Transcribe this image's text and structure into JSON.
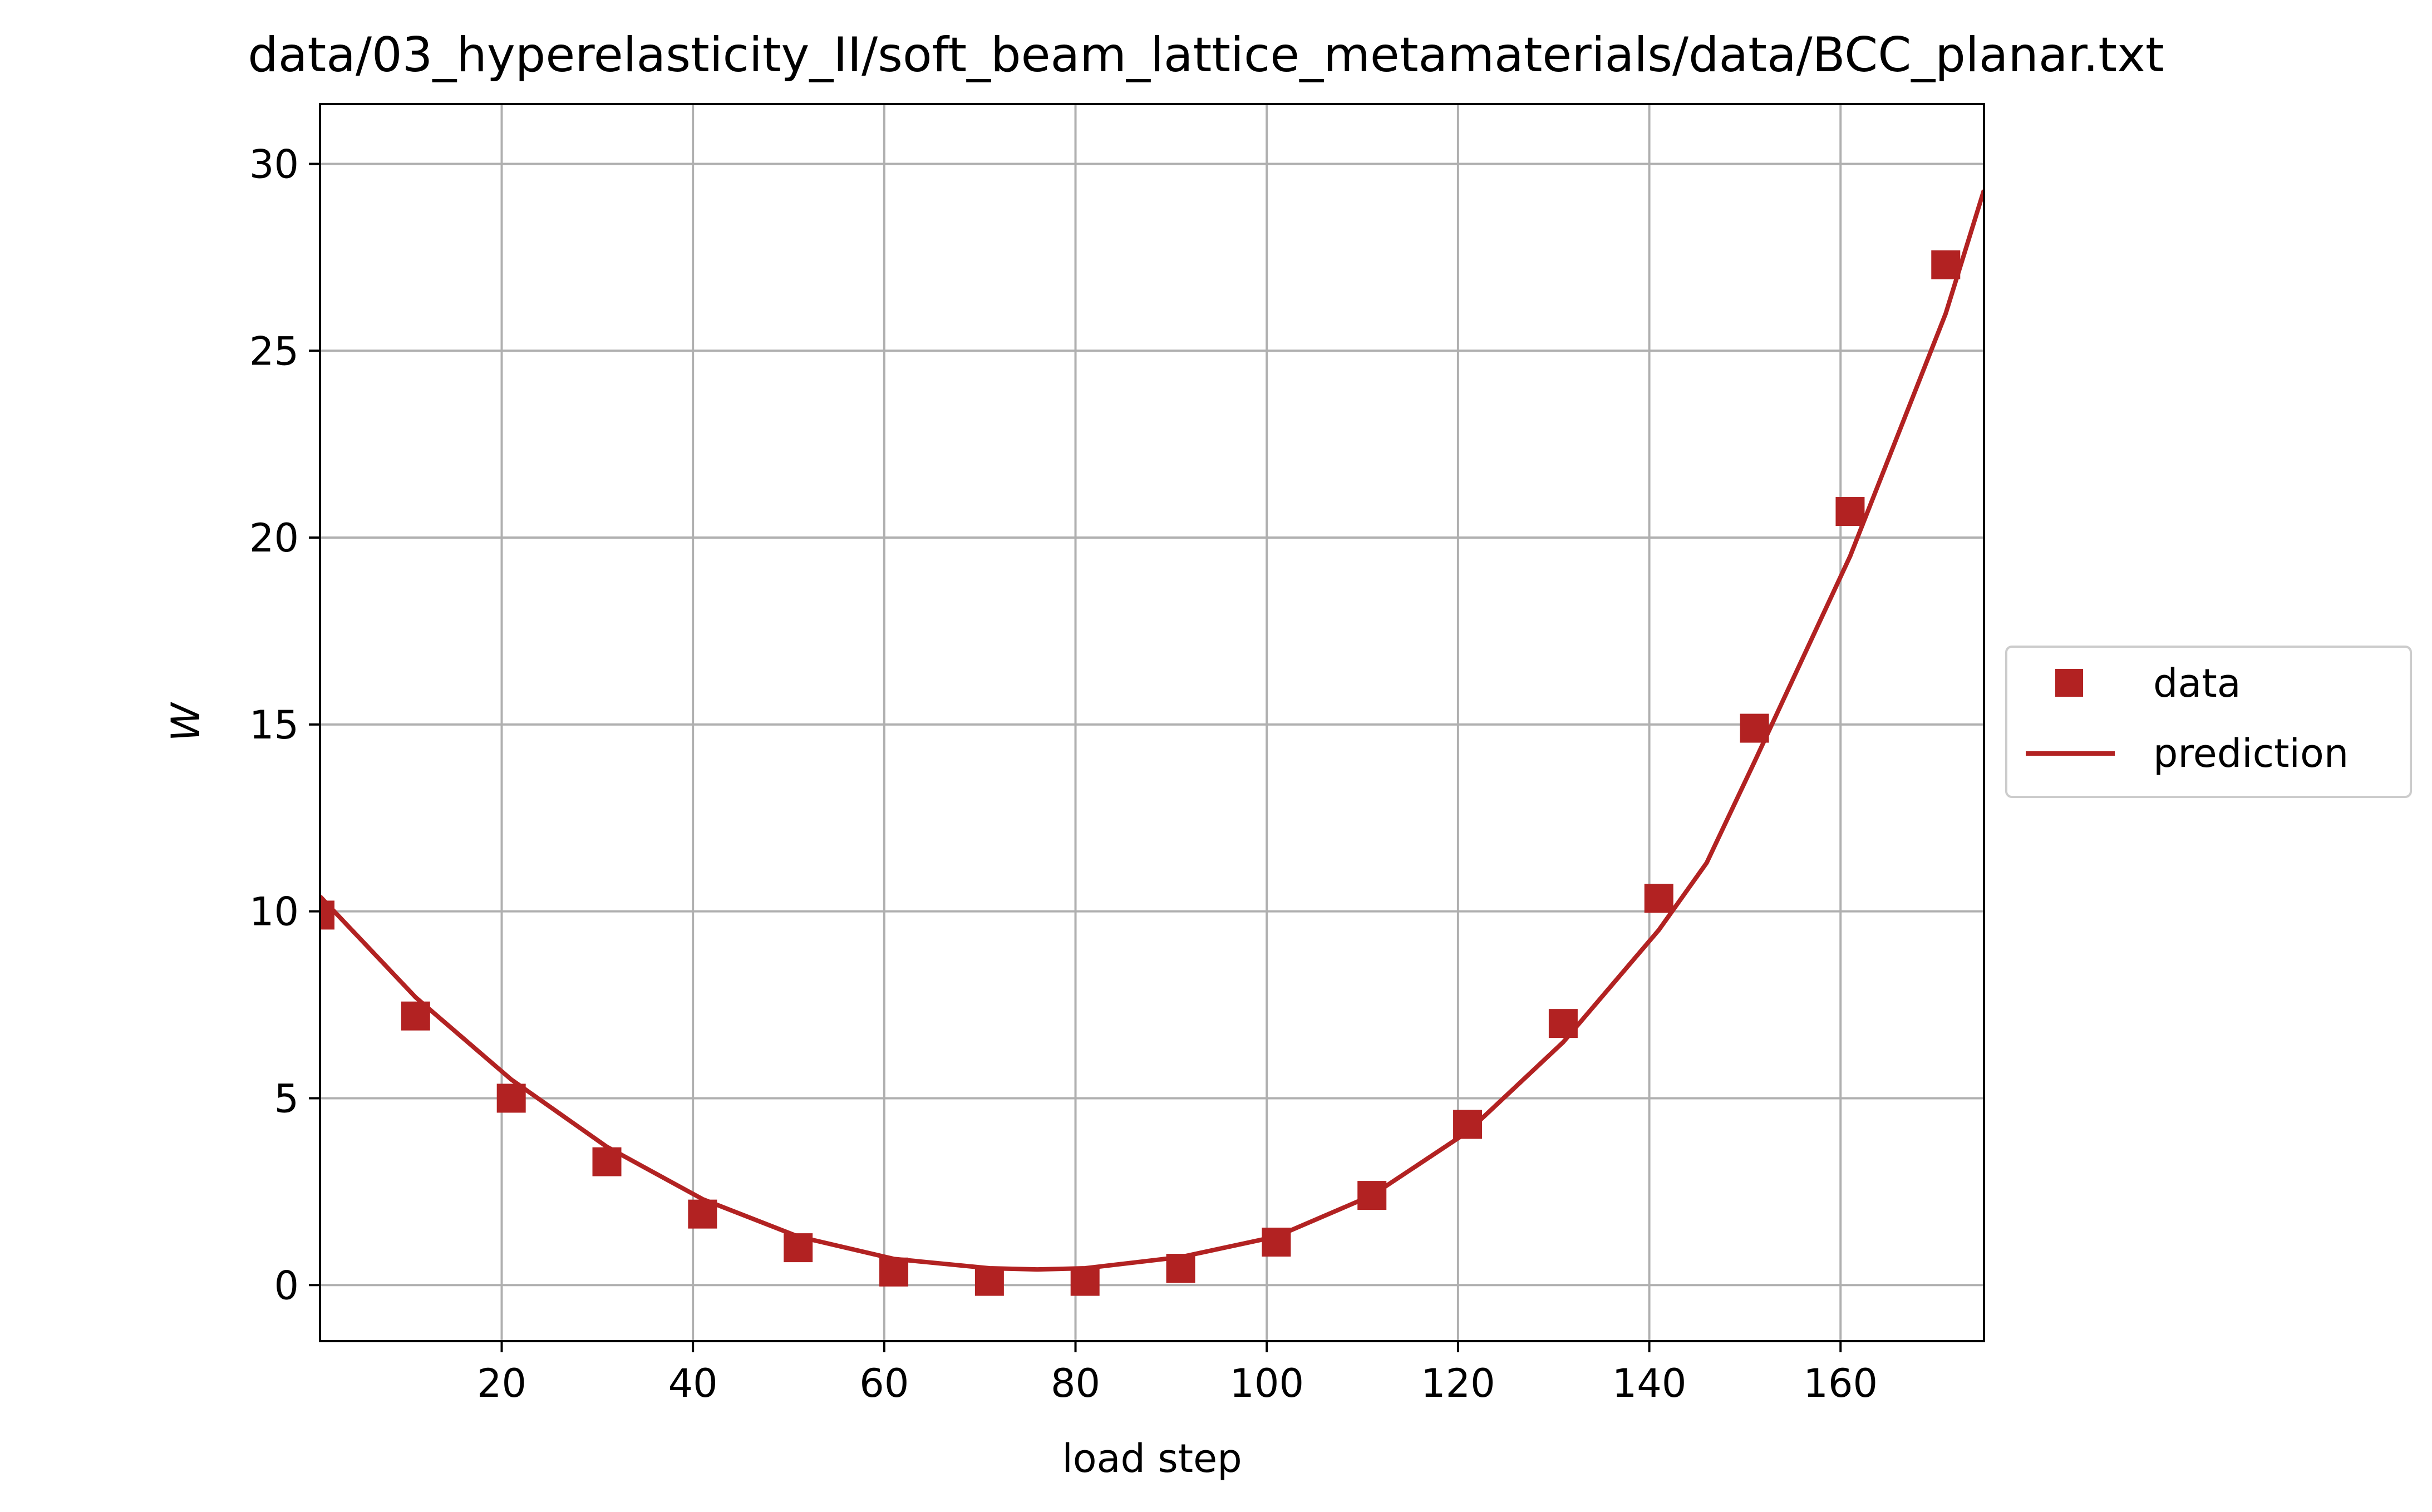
{
  "chart_data": {
    "type": "scatter",
    "title": "data/03_hyperelasticity_II/soft_beam_lattice_metamaterials/data/BCC_planar.txt",
    "xlabel": "load step",
    "ylabel": "W",
    "xlim": [
      1,
      175
    ],
    "ylim": [
      -1.5,
      31.6
    ],
    "xticks": [
      20,
      40,
      60,
      80,
      100,
      120,
      140,
      160
    ],
    "yticks": [
      0,
      5,
      10,
      15,
      20,
      25,
      30
    ],
    "grid": true,
    "legend_position": "center-right-outside",
    "color": "#b22222",
    "series": [
      {
        "name": "data",
        "kind": "markers",
        "marker": "square",
        "x": [
          1,
          11,
          21,
          31,
          41,
          51,
          61,
          71,
          81,
          91,
          101,
          111,
          121,
          131,
          141,
          151,
          161,
          171
        ],
        "y": [
          9.9,
          7.2,
          5.0,
          3.3,
          1.9,
          1.0,
          0.35,
          0.1,
          0.1,
          0.45,
          1.15,
          2.4,
          4.3,
          7.0,
          10.35,
          14.9,
          20.7,
          27.3
        ]
      },
      {
        "name": "prediction",
        "kind": "line",
        "x": [
          1,
          11,
          21,
          31,
          41,
          51,
          61,
          71,
          76,
          81,
          91,
          101,
          111,
          121,
          131,
          141,
          146,
          151,
          161,
          171,
          175
        ],
        "y": [
          10.4,
          7.7,
          5.5,
          3.7,
          2.3,
          1.3,
          0.7,
          0.45,
          0.42,
          0.45,
          0.75,
          1.3,
          2.4,
          4.1,
          6.5,
          9.5,
          11.3,
          14.0,
          19.5,
          26.0,
          29.3
        ]
      }
    ]
  }
}
